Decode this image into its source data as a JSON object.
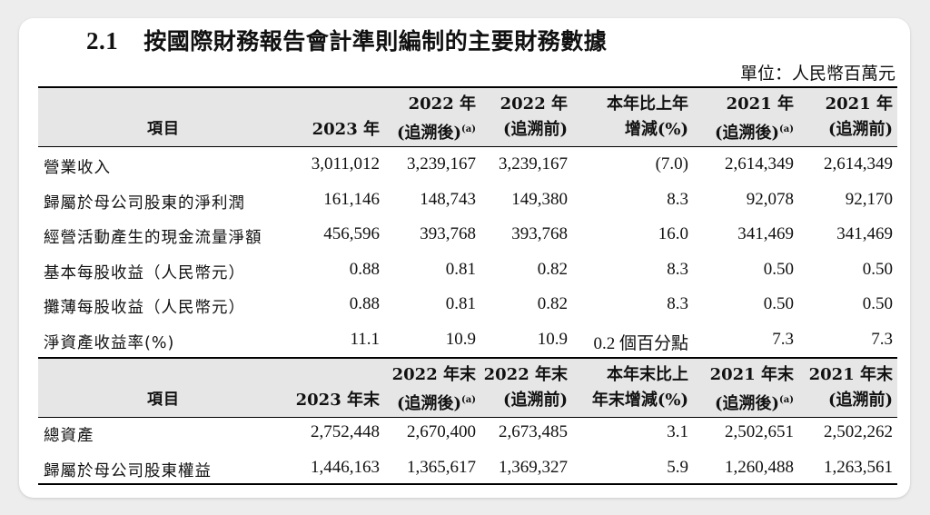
{
  "section": {
    "number": "2.1",
    "title": "按國際財務報告會計準則編制的主要財務數據"
  },
  "unit": "單位：人民幣百萬元",
  "table1": {
    "headers": {
      "item": "項目",
      "c1": [
        "",
        "2023 年"
      ],
      "c2": [
        "2022 年",
        "(追溯後)(a)"
      ],
      "c3": [
        "2022 年",
        "(追溯前)"
      ],
      "c4": [
        "本年比上年",
        "增減(%)"
      ],
      "c5": [
        "2021 年",
        "(追溯後)(a)"
      ],
      "c6": [
        "2021 年",
        "(追溯前)"
      ]
    },
    "rows": [
      {
        "label": "營業收入",
        "v": [
          "3,011,012",
          "3,239,167",
          "3,239,167",
          "(7.0)",
          "2,614,349",
          "2,614,349"
        ]
      },
      {
        "label": "歸屬於母公司股東的淨利潤",
        "v": [
          "161,146",
          "148,743",
          "149,380",
          "8.3",
          "92,078",
          "92,170"
        ]
      },
      {
        "label": "經營活動產生的現金流量淨額",
        "v": [
          "456,596",
          "393,768",
          "393,768",
          "16.0",
          "341,469",
          "341,469"
        ]
      },
      {
        "label": "基本每股收益（人民幣元）",
        "v": [
          "0.88",
          "0.81",
          "0.82",
          "8.3",
          "0.50",
          "0.50"
        ]
      },
      {
        "label": "攤薄每股收益（人民幣元）",
        "v": [
          "0.88",
          "0.81",
          "0.82",
          "8.3",
          "0.50",
          "0.50"
        ]
      },
      {
        "label": "淨資產收益率(%)",
        "v": [
          "11.1",
          "10.9",
          "10.9",
          "0.2 個百分點",
          "7.3",
          "7.3"
        ]
      }
    ]
  },
  "table2": {
    "headers": {
      "item": "項目",
      "c1": [
        "",
        "2023 年末"
      ],
      "c2": [
        "2022 年末",
        "(追溯後)(a)"
      ],
      "c3": [
        "2022 年末",
        "(追溯前)"
      ],
      "c4": [
        "本年末比上",
        "年末增減(%)"
      ],
      "c5": [
        "2021 年末",
        "(追溯後)(a)"
      ],
      "c6": [
        "2021 年末",
        "(追溯前)"
      ]
    },
    "rows": [
      {
        "label": "總資產",
        "v": [
          "2,752,448",
          "2,670,400",
          "2,673,485",
          "3.1",
          "2,502,651",
          "2,502,262"
        ]
      },
      {
        "label": "歸屬於母公司股東權益",
        "v": [
          "1,446,163",
          "1,365,617",
          "1,369,327",
          "5.9",
          "1,260,488",
          "1,263,561"
        ]
      }
    ]
  }
}
